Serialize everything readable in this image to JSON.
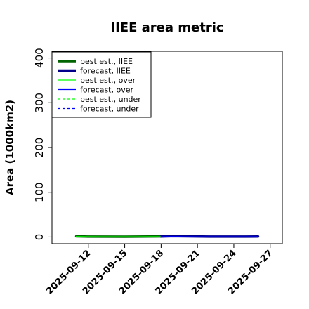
{
  "chart_data": {
    "type": "line",
    "title": "IIEE area metric",
    "ylabel": "Area (1000km2)",
    "xlabel": "",
    "ylim": [
      -15,
      415
    ],
    "xlim": [
      "2025-09-09",
      "2025-09-28"
    ],
    "yticks": [
      0,
      100,
      200,
      300,
      400
    ],
    "xticks": [
      {
        "label": "2025-09-12",
        "date": "2025-09-12",
        "color": "#000000"
      },
      {
        "label": "2025-09-15",
        "date": "2025-09-15",
        "color": "#000000"
      },
      {
        "label": "2025-09-18",
        "date": "2025-09-18",
        "color": "#228B22"
      },
      {
        "label": "2025-09-21",
        "date": "2025-09-21",
        "color": "#000000"
      },
      {
        "label": "2025-09-24",
        "date": "2025-09-24",
        "color": "#000000"
      },
      {
        "label": "2025-09-27",
        "date": "2025-09-27",
        "color": "#000000"
      }
    ],
    "grid": false,
    "legend_placement": "top-left",
    "series": [
      {
        "name": "best est., IIEE",
        "color": "#006400",
        "width": 3.5,
        "dash": "",
        "x": [
          "2025-09-11",
          "2025-09-12",
          "2025-09-15",
          "2025-09-16",
          "2025-09-17",
          "2025-09-18"
        ],
        "y": [
          1.5,
          0.8,
          0.7,
          0.8,
          1.0,
          1.2
        ]
      },
      {
        "name": "forecast, IIEE",
        "color": "#00008B",
        "width": 3.5,
        "dash": "",
        "x": [
          "2025-09-18",
          "2025-09-19",
          "2025-09-22",
          "2025-09-23",
          "2025-09-24",
          "2025-09-25",
          "2025-09-26"
        ],
        "y": [
          1.0,
          1.8,
          0.9,
          0.8,
          0.8,
          0.9,
          1.0
        ]
      },
      {
        "name": "best est., over",
        "color": "#00FF00",
        "width": 1.3,
        "dash": "",
        "x": [
          "2025-09-11",
          "2025-09-12",
          "2025-09-13",
          "2025-09-14",
          "2025-09-15",
          "2025-09-16",
          "2025-09-17",
          "2025-09-18"
        ],
        "y": [
          1.0,
          0.6,
          0.4,
          0.4,
          0.5,
          0.5,
          0.6,
          0.7
        ]
      },
      {
        "name": "forecast, over",
        "color": "#0000FF",
        "width": 1.3,
        "dash": "",
        "x": [
          "2025-09-18",
          "2025-09-19",
          "2025-09-20",
          "2025-09-21",
          "2025-09-22",
          "2025-09-23",
          "2025-09-24",
          "2025-09-25",
          "2025-09-26"
        ],
        "y": [
          0.6,
          1.0,
          0.5,
          0.5,
          0.5,
          0.4,
          0.5,
          0.5,
          0.6
        ]
      },
      {
        "name": "best est., under",
        "color": "#00FF00",
        "width": 1.3,
        "dash": "4,3",
        "x": [
          "2025-09-11",
          "2025-09-12",
          "2025-09-15",
          "2025-09-18"
        ],
        "y": [
          0.5,
          0.3,
          0.2,
          0.5
        ]
      },
      {
        "name": "forecast, under",
        "color": "#0000FF",
        "width": 1.3,
        "dash": "4,3",
        "x": [
          "2025-09-18",
          "2025-09-19",
          "2025-09-22",
          "2025-09-26"
        ],
        "y": [
          0.4,
          0.8,
          0.4,
          0.4
        ]
      }
    ]
  }
}
